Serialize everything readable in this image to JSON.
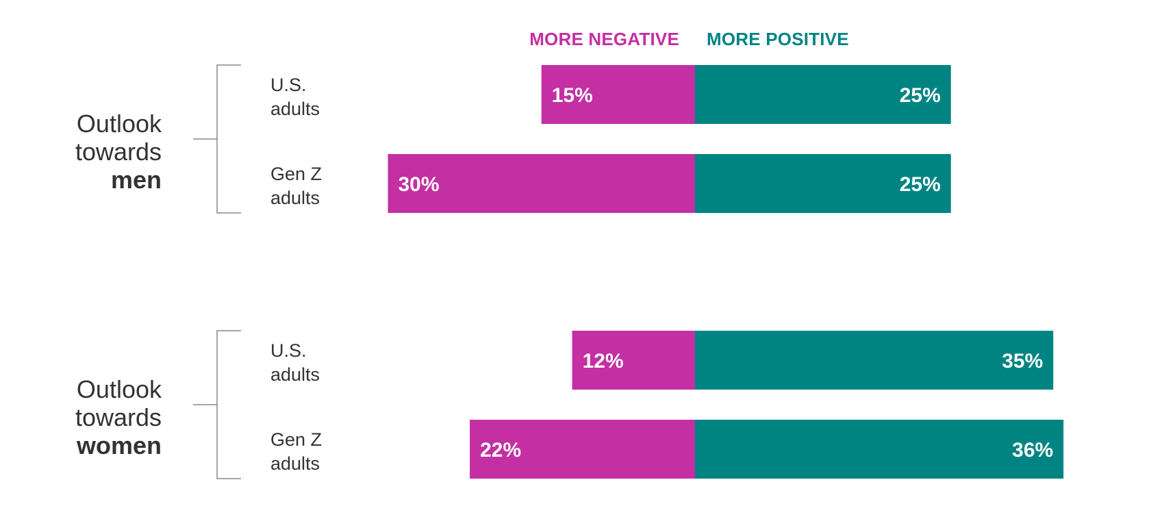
{
  "chart_data": {
    "type": "bar",
    "orientation": "horizontal-diverging",
    "legend": {
      "negative": "MORE NEGATIVE",
      "positive": "MORE POSITIVE",
      "placement": "top-center"
    },
    "colors": {
      "negative": "#C42FA3",
      "positive": "#008482",
      "text": "#333333",
      "bracket": "#888888"
    },
    "groups": [
      {
        "label_lines": [
          "Outlook",
          "towards"
        ],
        "label_bold": "men",
        "rows": [
          {
            "label_lines": [
              "U.S.",
              "adults"
            ],
            "negative": 15,
            "positive": 25,
            "negative_label": "15%",
            "positive_label": "25%"
          },
          {
            "label_lines": [
              "Gen Z",
              "adults"
            ],
            "negative": 30,
            "positive": 25,
            "negative_label": "30%",
            "positive_label": "25%"
          }
        ]
      },
      {
        "label_lines": [
          "Outlook",
          "towards"
        ],
        "label_bold": "women",
        "rows": [
          {
            "label_lines": [
              "U.S.",
              "adults"
            ],
            "negative": 12,
            "positive": 35,
            "negative_label": "12%",
            "positive_label": "35%"
          },
          {
            "label_lines": [
              "Gen Z",
              "adults"
            ],
            "negative": 22,
            "positive": 36,
            "negative_label": "22%",
            "positive_label": "36%"
          }
        ]
      }
    ],
    "grid": false
  }
}
